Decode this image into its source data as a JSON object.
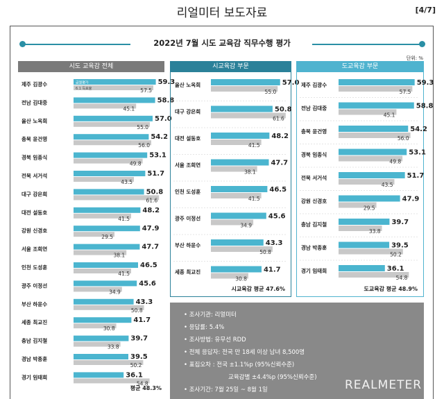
{
  "header": {
    "title": "리얼미터 보도자료",
    "page": "[4/7]"
  },
  "main_title": "2022년 7월 시도 교육감 직무수행 평가",
  "unit": "단위: %",
  "legend": {
    "current": "금월평가",
    "previous": "6.1 득표율"
  },
  "colors": {
    "current": "#4bb5cf",
    "previous": "#c8c8c8",
    "all_header": "#7a7a7a",
    "city_header": "#2b8199",
    "province_header": "#4fb3cf"
  },
  "chart_data": [
    {
      "type": "bar",
      "title": "시도 교육감 전체",
      "series": [
        {
          "name": "금월평가"
        },
        {
          "name": "6.1 득표율"
        }
      ],
      "categories": [
        "제주 김광수",
        "전남 김대중",
        "울산 노옥희",
        "충북 윤건영",
        "경북 임종식",
        "전북 서거석",
        "대구 강은희",
        "대전 설동호",
        "강원 신경호",
        "서울 조희연",
        "인천 도성훈",
        "광주 이정선",
        "부산 하윤수",
        "세종 최교진",
        "충남 김지철",
        "경남 박종훈",
        "경기 임태희"
      ],
      "current": [
        59.3,
        58.8,
        57.0,
        54.2,
        53.1,
        51.7,
        50.8,
        48.2,
        47.9,
        47.7,
        46.5,
        45.6,
        43.3,
        41.7,
        39.7,
        39.5,
        36.1
      ],
      "previous": [
        57.5,
        45.1,
        55.0,
        56.0,
        49.8,
        43.5,
        61.6,
        41.5,
        29.5,
        38.1,
        41.5,
        34.9,
        50.8,
        30.8,
        33.8,
        50.2,
        54.8
      ],
      "average_label": "평균 48.3%"
    },
    {
      "type": "bar",
      "title": "시교육감 부문",
      "categories": [
        "울산 노옥희",
        "대구 강은희",
        "대전 설동호",
        "서울 조희연",
        "인천 도성훈",
        "광주 이정선",
        "부산 하윤수",
        "세종 최교진"
      ],
      "current": [
        57.0,
        50.8,
        48.2,
        47.7,
        46.5,
        45.6,
        43.3,
        41.7
      ],
      "previous": [
        55.0,
        61.6,
        41.5,
        38.1,
        41.5,
        34.9,
        50.8,
        30.8
      ],
      "average_label": "시교육감 평균 47.6%"
    },
    {
      "type": "bar",
      "title": "도교육감 부문",
      "categories": [
        "제주 김광수",
        "전남 김대중",
        "충북 윤건영",
        "경북 임종식",
        "전북 서거석",
        "강원 신경호",
        "충남 김지철",
        "경남 박종훈",
        "경기 임태희"
      ],
      "current": [
        59.3,
        58.8,
        54.2,
        53.1,
        51.7,
        47.9,
        39.7,
        39.5,
        36.1
      ],
      "previous": [
        57.5,
        45.1,
        56.0,
        49.8,
        43.5,
        29.5,
        33.8,
        50.2,
        54.8
      ],
      "average_label": "도교육감 평균 48.9%"
    }
  ],
  "survey_info": [
    "• 조사기관: 리얼미터",
    "• 응답률: 5.4%",
    "• 조사방법: 유무선 RDD",
    "• 전체 응답자: 전국 만 18세 이상 남녀 8,500명",
    "• 표집오차 : 전국 ±1.1%p (95%신뢰수준)",
    "교육감별 ±4.4%p (95%신뢰수준)",
    "• 조사기간: 7월 25일 ~ 8월 1일"
  ],
  "logo": "REALMETER"
}
